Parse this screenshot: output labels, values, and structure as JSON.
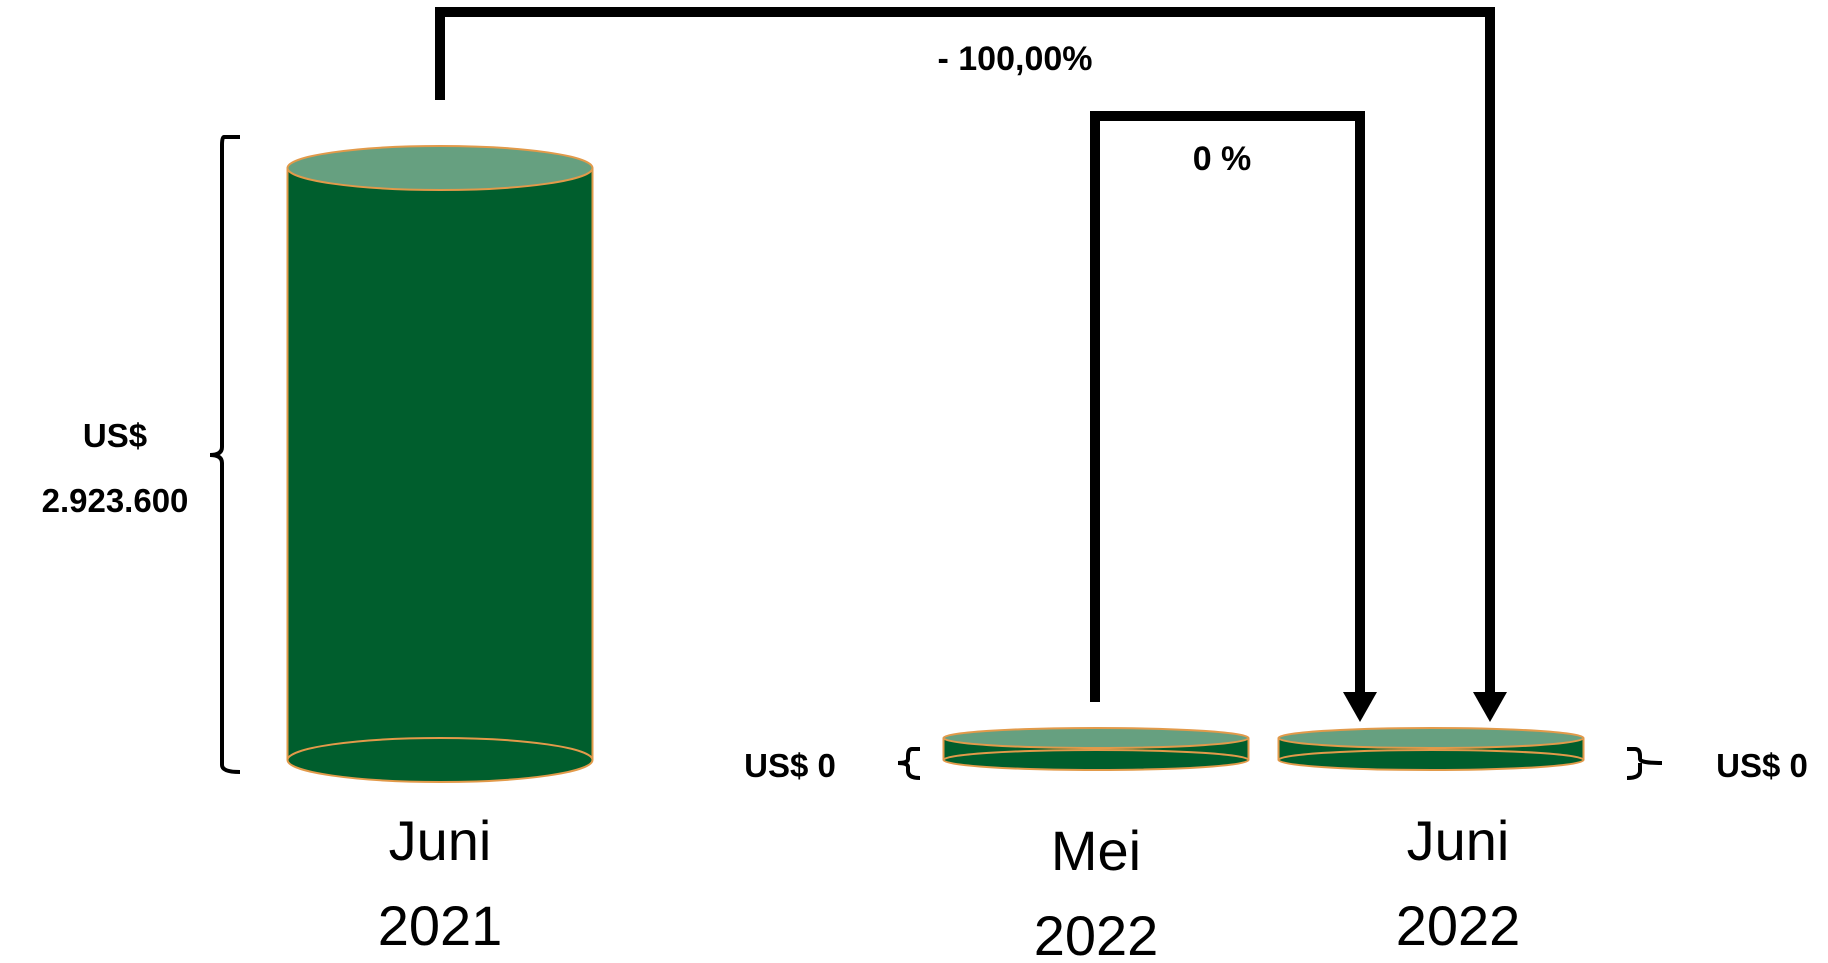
{
  "chart_data": {
    "type": "bar",
    "style": "cylinder",
    "categories": [
      {
        "line1": "Juni",
        "line2": "2021"
      },
      {
        "line1": "Mei",
        "line2": "2022"
      },
      {
        "line1": "Juni",
        "line2": "2022"
      }
    ],
    "values": [
      2923600,
      0,
      0
    ],
    "value_labels": [
      {
        "line1": "US$",
        "line2": "2.923.600"
      },
      {
        "line1": "US$ 0",
        "line2": ""
      },
      {
        "line1": "US$ 0",
        "line2": ""
      }
    ],
    "changes": [
      {
        "label": "- 100,00%",
        "from": 0,
        "to": 2
      },
      {
        "label": "0 %",
        "from": 1,
        "to": 2
      }
    ],
    "colors": {
      "body": "#005e2d",
      "top": "#66a080",
      "outline": "#e29a4a",
      "lines": "#000000"
    }
  }
}
